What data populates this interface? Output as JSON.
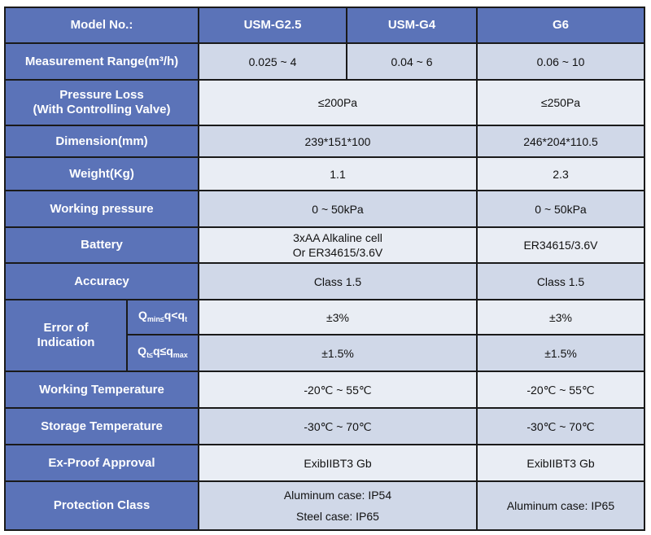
{
  "header": {
    "label": "Model No.:",
    "models": [
      "USM-G2.5",
      "USM-G4",
      "G6"
    ]
  },
  "rows": {
    "range": {
      "label": "Measurement Range(m³/h)",
      "g25": "0.025 ~ 4",
      "g4": "0.04 ~ 6",
      "g6": "0.06 ~ 10"
    },
    "pressure_loss": {
      "label1": "Pressure Loss",
      "label2": "(With Controlling Valve)",
      "g25_g4": "≤200Pa",
      "g6": "≤250Pa"
    },
    "dimension": {
      "label": "Dimension(mm)",
      "g25_g4": "239*151*100",
      "g6": "246*204*110.5"
    },
    "weight": {
      "label": "Weight(Kg)",
      "g25_g4": "1.1",
      "g6": "2.3"
    },
    "working_pressure": {
      "label": "Working pressure",
      "g25_g4": "0 ~ 50kPa",
      "g6": "0 ~ 50kPa"
    },
    "battery": {
      "label": "Battery",
      "g25_g4_1": "3xAA Alkaline cell",
      "g25_g4_2": "Or ER34615/3.6V",
      "g6": "ER34615/3.6V"
    },
    "accuracy": {
      "label": "Accuracy",
      "g25_g4": "Class 1.5",
      "g6": "Class 1.5"
    },
    "error": {
      "label1": "Error of",
      "label2": "Indication",
      "sub1": {
        "q": "Q",
        "s1": "min≤",
        "m": "q<q",
        "s2": "t",
        "g25_g4": "±3%",
        "g6": "±3%"
      },
      "sub2": {
        "q": "Q",
        "s1": "t≤",
        "m": "q≤q",
        "s2": "max",
        "g25_g4": "±1.5%",
        "g6": "±1.5%"
      }
    },
    "working_temp": {
      "label": "Working Temperature",
      "g25_g4": "-20℃ ~ 55℃",
      "g6": "-20℃ ~ 55℃"
    },
    "storage_temp": {
      "label": "Storage Temperature",
      "g25_g4": "-30℃ ~ 70℃",
      "g6": "-30℃ ~ 70℃"
    },
    "ex_proof": {
      "label": "Ex-Proof Approval",
      "g25_g4": "ExibIIBT3 Gb",
      "g6": "ExibIIBT3 Gb"
    },
    "protection": {
      "label": "Protection Class",
      "g25_g4_1": "Aluminum case: IP54",
      "g25_g4_2": "Steel case: IP65",
      "g6": "Aluminum case: IP65"
    }
  },
  "colors": {
    "header": "#5b73b8",
    "cell_dark": "#d0d8e8",
    "cell_light": "#e9edf4"
  }
}
